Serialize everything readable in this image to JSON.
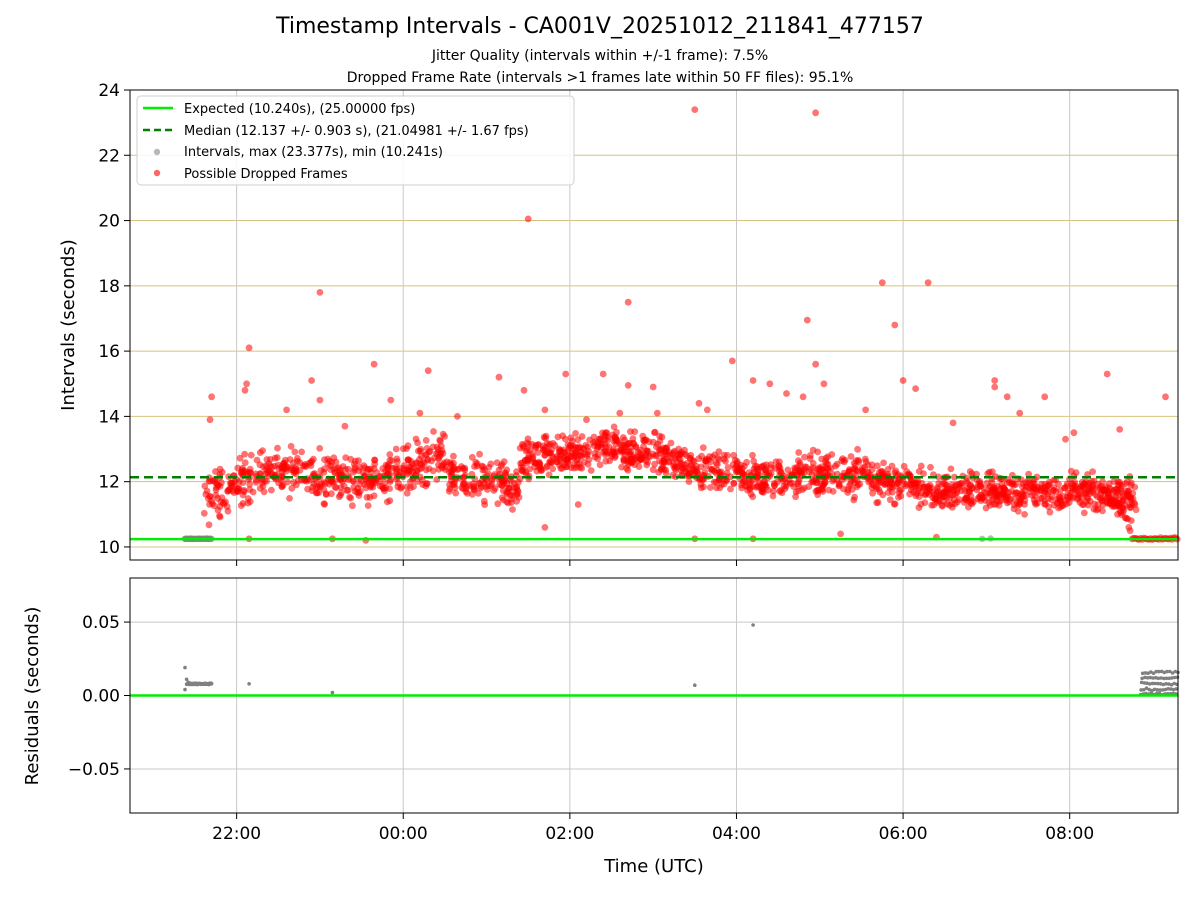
{
  "header": {
    "title": "Timestamp Intervals - CA001V_20251012_211841_477157",
    "subtitle_jitter": "Jitter Quality (intervals within +/-1 frame): 7.5%",
    "subtitle_dropped": "Dropped Frame Rate (intervals >1 frames late within 50 FF files): 95.1%"
  },
  "colors": {
    "expected": "#00ee00",
    "median": "#007f00",
    "intervals": "#808080",
    "dropped": "#ff0000",
    "upper_grid": "#d7c27f",
    "lower_grid": "#c8c8c8"
  },
  "chart_data": [
    {
      "type": "scatter",
      "name": "intervals",
      "ylabel": "Intervals (seconds)",
      "ylim": [
        9.6,
        24
      ],
      "yticks": [
        10,
        12,
        14,
        16,
        18,
        20,
        22,
        24
      ],
      "ytick_labels": [
        "10",
        "12",
        "14",
        "16",
        "18",
        "20",
        "22",
        "24"
      ],
      "grid": true,
      "legend_position": "top-left",
      "expected_line": {
        "value": 10.24,
        "label": "Expected (10.240s), (25.00000 fps)"
      },
      "median_line": {
        "value": 12.137,
        "label": "Median (12.137 +/- 0.903 s), (21.04981 +/- 1.67 fps)"
      },
      "intervals_series": {
        "label": "Intervals, max (23.377s), min (10.241s)",
        "points": [
          [
            -0.62,
            10.25
          ],
          [
            -0.55,
            10.26
          ],
          [
            -0.45,
            10.25
          ],
          [
            -0.36,
            10.26
          ],
          [
            -0.3,
            10.25
          ],
          [
            8.95,
            10.25
          ],
          [
            9.05,
            10.26
          ]
        ]
      },
      "dropped_series": {
        "label": "Possible Dropped Frames",
        "outliers": [
          [
            -0.3,
            14.6
          ],
          [
            -0.32,
            13.9
          ],
          [
            0.1,
            14.8
          ],
          [
            0.15,
            16.1
          ],
          [
            0.12,
            15
          ],
          [
            0.6,
            14.2
          ],
          [
            0.9,
            15.1
          ],
          [
            1.0,
            17.8
          ],
          [
            1.0,
            14.5
          ],
          [
            1.3,
            13.7
          ],
          [
            1.65,
            15.6
          ],
          [
            1.85,
            14.5
          ],
          [
            2.3,
            15.4
          ],
          [
            2.2,
            14.1
          ],
          [
            2.65,
            14
          ],
          [
            3.15,
            15.2
          ],
          [
            3.45,
            14.8
          ],
          [
            3.5,
            20.05
          ],
          [
            3.7,
            14.2
          ],
          [
            3.95,
            15.3
          ],
          [
            4.2,
            13.9
          ],
          [
            4.4,
            15.3
          ],
          [
            4.6,
            14.1
          ],
          [
            4.7,
            14.95
          ],
          [
            4.7,
            17.5
          ],
          [
            5.0,
            14.9
          ],
          [
            5.05,
            14.1
          ],
          [
            5.55,
            14.4
          ],
          [
            5.5,
            23.4
          ],
          [
            5.65,
            14.2
          ],
          [
            5.95,
            15.7
          ],
          [
            6.2,
            15.1
          ],
          [
            6.4,
            15.0
          ],
          [
            6.6,
            14.7
          ],
          [
            6.8,
            14.6
          ],
          [
            6.85,
            16.95
          ],
          [
            6.95,
            15.6
          ],
          [
            6.95,
            23.3
          ],
          [
            7.05,
            15.0
          ],
          [
            7.55,
            14.2
          ],
          [
            7.75,
            18.1
          ],
          [
            7.9,
            16.8
          ],
          [
            8.0,
            15.1
          ],
          [
            8.15,
            14.85
          ],
          [
            8.3,
            18.1
          ],
          [
            8.6,
            13.8
          ],
          [
            9.1,
            15.1
          ],
          [
            9.1,
            14.9
          ],
          [
            9.25,
            14.6
          ],
          [
            9.4,
            14.1
          ],
          [
            9.7,
            14.6
          ],
          [
            9.95,
            13.3
          ],
          [
            10.05,
            13.5
          ],
          [
            10.45,
            15.3
          ],
          [
            10.6,
            13.6
          ],
          [
            11.15,
            14.6
          ]
        ],
        "low_points": [
          [
            0.15,
            10.25
          ],
          [
            1.15,
            10.25
          ],
          [
            1.55,
            10.2
          ],
          [
            3.7,
            10.6
          ],
          [
            4.1,
            11.3
          ],
          [
            5.5,
            10.25
          ],
          [
            6.2,
            10.25
          ],
          [
            7.25,
            10.4
          ],
          [
            8.4,
            10.3
          ]
        ],
        "clusters": [
          {
            "start": -0.4,
            "end": 0.3,
            "y0": 11.4,
            "y1": 12.3,
            "spread": 0.9,
            "count": 110
          },
          {
            "start": 0.3,
            "end": 1.7,
            "y0": 12.4,
            "y1": 12.0,
            "spread": 0.85,
            "count": 240
          },
          {
            "start": 1.7,
            "end": 2.5,
            "y0": 12.0,
            "y1": 12.9,
            "spread": 0.85,
            "count": 140
          },
          {
            "start": 2.5,
            "end": 3.4,
            "y0": 12.2,
            "y1": 11.8,
            "spread": 0.8,
            "count": 150
          },
          {
            "start": 3.4,
            "end": 4.6,
            "y0": 12.6,
            "y1": 13.1,
            "spread": 0.75,
            "count": 230
          },
          {
            "start": 4.6,
            "end": 5.4,
            "y0": 13.0,
            "y1": 12.6,
            "spread": 0.7,
            "count": 160
          },
          {
            "start": 5.4,
            "end": 6.3,
            "y0": 12.4,
            "y1": 12.2,
            "spread": 0.8,
            "count": 160
          },
          {
            "start": 6.3,
            "end": 7.6,
            "y0": 12.1,
            "y1": 12.3,
            "spread": 0.8,
            "count": 230
          },
          {
            "start": 7.6,
            "end": 8.6,
            "y0": 12.0,
            "y1": 11.7,
            "spread": 0.7,
            "count": 190
          },
          {
            "start": 8.6,
            "end": 10.0,
            "y0": 11.8,
            "y1": 11.6,
            "spread": 0.65,
            "count": 260
          },
          {
            "start": 10.0,
            "end": 10.8,
            "y0": 11.7,
            "y1": 11.5,
            "spread": 0.65,
            "count": 170
          }
        ],
        "tail_x_start": 10.75,
        "tail_x_end": 11.3,
        "tail_value": 10.25
      }
    },
    {
      "type": "scatter",
      "name": "residuals",
      "ylabel": "Residuals (seconds)",
      "xlabel": "Time (UTC)",
      "xlim": [
        -1.28,
        11.3
      ],
      "xticks": [
        0,
        2,
        4,
        6,
        8,
        10
      ],
      "xtick_labels": [
        "22:00",
        "00:00",
        "02:00",
        "04:00",
        "06:00",
        "08:00"
      ],
      "ylim": [
        -0.08,
        0.08
      ],
      "yticks": [
        0.05,
        0.0,
        -0.05
      ],
      "ytick_labels": [
        "0.05",
        "0.00",
        "−0.05"
      ],
      "grid": true,
      "zero_line": 0.0,
      "points": [
        [
          -0.62,
          0.019
        ],
        [
          -0.62,
          0.004
        ],
        [
          -0.6,
          0.011
        ],
        [
          -0.58,
          0.009
        ],
        [
          0.15,
          0.008
        ],
        [
          1.15,
          0.002
        ],
        [
          5.5,
          0.007
        ],
        [
          6.2,
          0.048
        ]
      ],
      "start_band": {
        "x0": -0.6,
        "x1": -0.3,
        "value": 0.008,
        "count": 60
      },
      "end_band": {
        "x0": 10.85,
        "x1": 11.3,
        "values": [
          0.001,
          0.004,
          0.008,
          0.012,
          0.016
        ],
        "count": 70
      }
    }
  ]
}
